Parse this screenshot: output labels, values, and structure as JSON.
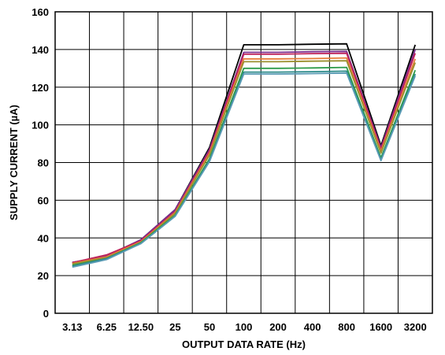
{
  "chart_data": {
    "type": "line",
    "title": "",
    "xlabel": "OUTPUT DATA RATE (Hz)",
    "ylabel": "SUPPLY CURRENT (µA)",
    "categories": [
      "3.13",
      "6.25",
      "12.50",
      "25",
      "50",
      "100",
      "200",
      "400",
      "800",
      "1600",
      "3200"
    ],
    "ylim": [
      0,
      160
    ],
    "yticks": [
      "0",
      "20",
      "40",
      "60",
      "80",
      "100",
      "120",
      "140",
      "160"
    ],
    "grid": true,
    "series": [
      {
        "color": "#000000",
        "values": [
          27,
          30,
          39,
          55,
          88,
          142.5,
          142.5,
          142.8,
          143,
          89,
          142.5
        ]
      },
      {
        "color": "#7b2d8e",
        "values": [
          27,
          30.5,
          39,
          55,
          87,
          138.5,
          138.5,
          138.8,
          139,
          88,
          140
        ]
      },
      {
        "color": "#c0245b",
        "values": [
          26.8,
          31,
          38.5,
          54,
          86,
          137.5,
          137.5,
          137.8,
          138,
          87,
          138
        ]
      },
      {
        "color": "#e87b3a",
        "values": [
          26.5,
          30,
          38,
          53.5,
          85,
          135,
          135,
          135.2,
          135.5,
          86,
          135
        ]
      },
      {
        "color": "#9b8f2e",
        "values": [
          26.2,
          29.5,
          37.5,
          53,
          84,
          133.5,
          133.5,
          133.8,
          134,
          85,
          133
        ]
      },
      {
        "color": "#2e9b4a",
        "values": [
          25.5,
          29,
          37.5,
          52,
          82,
          130,
          130,
          130.2,
          130.5,
          82.5,
          129
        ]
      },
      {
        "color": "#2a8a8a",
        "values": [
          25,
          29,
          37,
          51.5,
          81,
          128,
          128,
          128.2,
          128.5,
          81.5,
          127
        ]
      },
      {
        "color": "#5a9bb5",
        "values": [
          24.5,
          28.5,
          37,
          51.5,
          80.5,
          127,
          127,
          127.2,
          127.5,
          81,
          126
        ]
      }
    ]
  }
}
